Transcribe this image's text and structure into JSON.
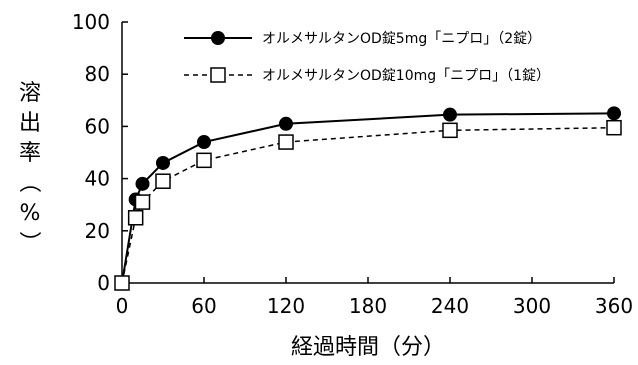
{
  "chart_data": {
    "type": "line",
    "title": "",
    "xlabel": "経過時間（分）",
    "ylabel": "溶出率（%）",
    "xlim": [
      0,
      360
    ],
    "ylim": [
      0,
      100
    ],
    "x_ticks": [
      0,
      60,
      120,
      180,
      240,
      300,
      360
    ],
    "y_ticks": [
      0,
      20,
      40,
      60,
      80,
      100
    ],
    "grid": false,
    "legend_position": "top-right",
    "series": [
      {
        "name": "オルメサルタンOD錠5mg「ニプロ」（2錠）",
        "marker": "filled-circle",
        "line_style": "solid",
        "color": "#000000",
        "x": [
          0,
          10,
          15,
          30,
          60,
          120,
          240,
          360
        ],
        "y": [
          0,
          32,
          38,
          46,
          54,
          61,
          64.5,
          65
        ]
      },
      {
        "name": "オルメサルタンOD錠10mg「ニプロ」（1錠）",
        "marker": "open-square",
        "line_style": "dashed",
        "color": "#000000",
        "x": [
          0,
          10,
          15,
          30,
          60,
          120,
          240,
          360
        ],
        "y": [
          0,
          25,
          31,
          39,
          47,
          54,
          58.5,
          59.5
        ]
      }
    ]
  }
}
